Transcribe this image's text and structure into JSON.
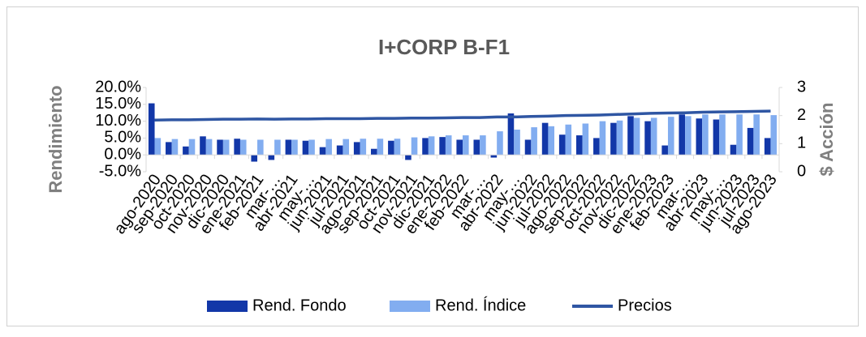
{
  "chart_data": {
    "type": "bar-line",
    "title": "I+CORP B-F1",
    "ylabel": "Rendimiento",
    "y2label": "$ Acción",
    "categories": [
      "ago-2020",
      "sep-2020",
      "oct-2020",
      "nov-2020",
      "dic-2020",
      "ene-2021",
      "feb-2021",
      "mar-…",
      "abr-2021",
      "may-…",
      "jun-2021",
      "jul-2021",
      "ago-2021",
      "sep-2021",
      "oct-2021",
      "nov-2021",
      "dic-2021",
      "ene-2022",
      "feb-2022",
      "mar-…",
      "abr-2022",
      "may-…",
      "jun-2022",
      "jul-2022",
      "ago-2022",
      "sep-2022",
      "oct-2022",
      "nov-2022",
      "dic-2022",
      "ene-2023",
      "feb-2023",
      "mar-…",
      "abr-2023",
      "may-…",
      "jun-2023",
      "jul-2023",
      "ago-2023"
    ],
    "series": [
      {
        "name": "Rend. Fondo",
        "type": "bar",
        "color": "#1237a8",
        "values": [
          15.3,
          3.8,
          2.5,
          5.5,
          4.5,
          4.8,
          -2.0,
          -1.5,
          4.5,
          4.2,
          2.3,
          2.8,
          3.8,
          1.8,
          4.2,
          -1.5,
          5.0,
          5.3,
          4.5,
          4.5,
          -0.8,
          12.3,
          4.5,
          9.5,
          6.0,
          5.8,
          5.0,
          9.5,
          11.5,
          10.0,
          2.8,
          12.0,
          10.8,
          10.5,
          3.0,
          8.0,
          5.0
        ]
      },
      {
        "name": "Rend. Índice",
        "type": "bar",
        "color": "#82adf0",
        "values": [
          5.0,
          4.7,
          4.7,
          4.7,
          4.5,
          4.5,
          4.5,
          4.5,
          4.5,
          4.5,
          4.7,
          4.7,
          4.8,
          4.8,
          4.8,
          5.2,
          5.5,
          5.8,
          5.8,
          5.8,
          7.0,
          7.5,
          8.2,
          8.5,
          9.0,
          9.3,
          10.0,
          10.2,
          11.0,
          11.0,
          11.3,
          11.5,
          12.0,
          12.0,
          12.0,
          12.0,
          11.8
        ]
      },
      {
        "name": "Precios",
        "type": "line",
        "axis": "y2",
        "color": "#2f56a3",
        "values": [
          1.84,
          1.85,
          1.85,
          1.86,
          1.87,
          1.87,
          1.88,
          1.87,
          1.88,
          1.88,
          1.89,
          1.89,
          1.89,
          1.9,
          1.9,
          1.91,
          1.91,
          1.92,
          1.93,
          1.93,
          1.95,
          1.95,
          1.97,
          1.98,
          2.0,
          2.01,
          2.02,
          2.04,
          2.06,
          2.08,
          2.09,
          2.1,
          2.12,
          2.13,
          2.14,
          2.15,
          2.16
        ]
      }
    ],
    "ylim": [
      -5,
      20
    ],
    "yticks": [
      {
        "value": -5,
        "label": "-5.0%"
      },
      {
        "value": 0,
        "label": "0.0%"
      },
      {
        "value": 5,
        "label": "5.0%"
      },
      {
        "value": 10,
        "label": "10.0%"
      },
      {
        "value": 15,
        "label": "15.0%"
      },
      {
        "value": 20,
        "label": "20.0%"
      }
    ],
    "y2lim": [
      0,
      3
    ],
    "y2ticks": [
      0,
      1,
      2,
      3
    ],
    "legend": "bottom"
  }
}
